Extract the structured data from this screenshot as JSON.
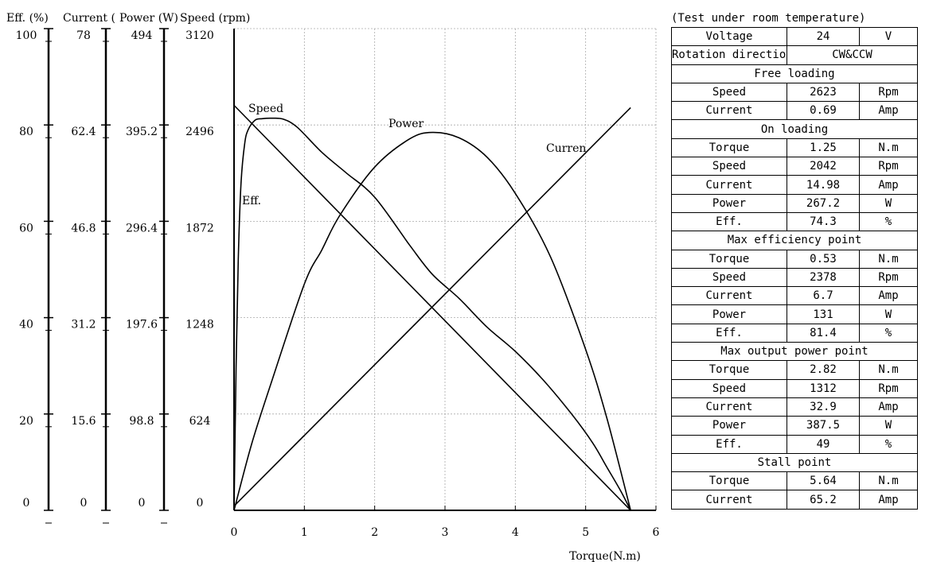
{
  "chart_data": {
    "type": "line",
    "xlabel": "Torque(N.m)",
    "xlim": [
      0,
      6
    ],
    "xticks": [
      "0",
      "1",
      "2",
      "3",
      "4",
      "5",
      "6"
    ],
    "axes": [
      {
        "key": "eff",
        "label": "Eff. (%)",
        "range": [
          0,
          100
        ],
        "ticks": [
          "100",
          "80",
          "60",
          "40",
          "20",
          "0"
        ]
      },
      {
        "key": "current",
        "label": "Current (",
        "range": [
          0,
          78
        ],
        "ticks": [
          "78",
          "62.4",
          "46.8",
          "31.2",
          "15.6",
          "0"
        ]
      },
      {
        "key": "power",
        "label": "Power (W)",
        "range": [
          0,
          494
        ],
        "ticks": [
          "494",
          "395.2",
          "296.4",
          "197.6",
          "98.8",
          "0"
        ]
      },
      {
        "key": "speed",
        "label": "Speed (rpm)",
        "range": [
          0,
          3120
        ],
        "ticks": [
          "3120",
          "2496",
          "1872",
          "1248",
          "624",
          "0"
        ]
      }
    ],
    "series": [
      {
        "name": "Speed",
        "axis": "speed",
        "x": [
          0,
          0.53,
          1.25,
          2.82,
          5.64
        ],
        "y": [
          2623,
          2378,
          2042,
          1312,
          0
        ]
      },
      {
        "name": "Curren",
        "axis": "current",
        "x": [
          0,
          0.53,
          1.25,
          2.82,
          5.64
        ],
        "y": [
          0.69,
          6.7,
          14.98,
          32.9,
          65.2
        ]
      },
      {
        "name": "Power",
        "axis": "power",
        "x": [
          0,
          0.25,
          0.53,
          1.0,
          1.25,
          1.5,
          2.0,
          2.5,
          2.82,
          3.2,
          3.6,
          4.0,
          4.5,
          5.0,
          5.3,
          5.64
        ],
        "y": [
          0,
          68,
          131,
          232,
          267.2,
          302,
          352,
          381,
          387.5,
          382,
          362,
          325,
          260,
          165,
          95,
          0
        ]
      },
      {
        "name": "Eff.",
        "axis": "eff",
        "x": [
          0,
          0.03,
          0.06,
          0.1,
          0.15,
          0.2,
          0.3,
          0.4,
          0.53,
          0.7,
          0.9,
          1.25,
          1.6,
          2.0,
          2.5,
          2.82,
          3.2,
          3.6,
          4.0,
          4.4,
          4.8,
          5.1,
          5.3,
          5.5,
          5.64
        ],
        "y": [
          0,
          30,
          52,
          68,
          76,
          79,
          81,
          81.3,
          81.4,
          81.2,
          79.5,
          74.3,
          70,
          65,
          55,
          49,
          44,
          38,
          33,
          27,
          20,
          14,
          9,
          4,
          0
        ]
      }
    ]
  },
  "spec_table": {
    "note": "(Test under room temperature)",
    "rows": [
      {
        "cells": [
          "Voltage",
          "24",
          "V"
        ]
      },
      {
        "cells": [
          "Rotation direction",
          "CW&CCW"
        ]
      },
      {
        "section": "Free loading"
      },
      {
        "cells": [
          "Speed",
          "2623",
          "Rpm"
        ]
      },
      {
        "cells": [
          "Current",
          "0.69",
          "Amp"
        ]
      },
      {
        "section": "On loading"
      },
      {
        "cells": [
          "Torque",
          "1.25",
          "N.m"
        ]
      },
      {
        "cells": [
          "Speed",
          "2042",
          "Rpm"
        ]
      },
      {
        "cells": [
          "Current",
          "14.98",
          "Amp"
        ]
      },
      {
        "cells": [
          "Power",
          "267.2",
          "W"
        ]
      },
      {
        "cells": [
          "Eff.",
          "74.3",
          "%"
        ]
      },
      {
        "section": "Max efficiency point"
      },
      {
        "cells": [
          "Torque",
          "0.53",
          "N.m"
        ]
      },
      {
        "cells": [
          "Speed",
          "2378",
          "Rpm"
        ]
      },
      {
        "cells": [
          "Current",
          "6.7",
          "Amp"
        ]
      },
      {
        "cells": [
          "Power",
          "131",
          "W"
        ]
      },
      {
        "cells": [
          "Eff.",
          "81.4",
          "%"
        ]
      },
      {
        "section": "Max output power point"
      },
      {
        "cells": [
          "Torque",
          "2.82",
          "N.m"
        ]
      },
      {
        "cells": [
          "Speed",
          "1312",
          "Rpm"
        ]
      },
      {
        "cells": [
          "Current",
          "32.9",
          "Amp"
        ]
      },
      {
        "cells": [
          "Power",
          "387.5",
          "W"
        ]
      },
      {
        "cells": [
          "Eff.",
          "49",
          "%"
        ]
      },
      {
        "section": "Stall point"
      },
      {
        "cells": [
          "Torque",
          "5.64",
          "N.m"
        ]
      },
      {
        "cells": [
          "Current",
          "65.2",
          "Amp"
        ]
      }
    ]
  }
}
